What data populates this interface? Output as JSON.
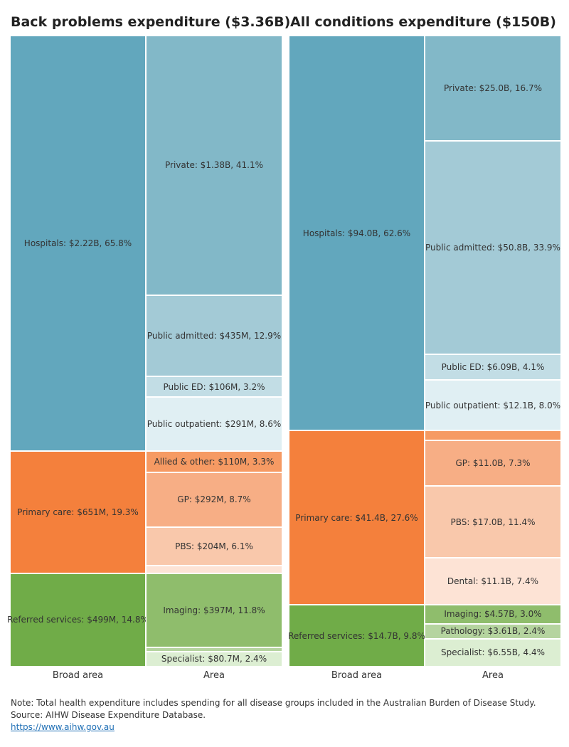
{
  "colors": {
    "hospitals": "#62a7bd",
    "private": "#82b8c8",
    "public_admitted": "#a3cad6",
    "public_ed": "#c2dde5",
    "public_outpatient": "#e0eff3",
    "primary_care": "#f4803c",
    "allied_other": "#f69a63",
    "gp": "#f7ae85",
    "pbs": "#f9c8ab",
    "dental": "#fde3d5",
    "referred": "#70ac48",
    "imaging": "#8fbd6c",
    "pathology": "#b5d49f",
    "specialist": "#dceed2"
  },
  "chart_data": [
    {
      "type": "treemap",
      "title": "Back problems expenditure ($3.36B)",
      "xlabel_broad": "Broad area",
      "xlabel_area": "Area",
      "total_billion": 3.36,
      "broad": [
        {
          "key": "hospitals",
          "label": "Hospitals: $2.22B, 65.8%",
          "value": 65.8,
          "areas": [
            {
              "key": "private",
              "label": "Private: $1.38B, 41.1%",
              "value": 41.1
            },
            {
              "key": "public_admitted",
              "label": "Public admitted: $435M, 12.9%",
              "value": 12.9
            },
            {
              "key": "public_ed",
              "label": "Public ED: $106M, 3.2%",
              "value": 3.2
            },
            {
              "key": "public_outpatient",
              "label": "Public outpatient: $291M, 8.6%",
              "value": 8.6
            }
          ]
        },
        {
          "key": "primary_care",
          "label": "Primary care: $651M, 19.3%",
          "value": 19.3,
          "areas": [
            {
              "key": "allied_other",
              "label": "Allied & other: $110M, 3.3%",
              "value": 3.3
            },
            {
              "key": "gp",
              "label": "GP: $292M, 8.7%",
              "value": 8.7
            },
            {
              "key": "pbs",
              "label": "PBS: $204M, 6.1%",
              "value": 6.1
            },
            {
              "key": "dental",
              "label": "",
              "value": 1.2
            }
          ]
        },
        {
          "key": "referred",
          "label": "Referred services: $499M, 14.8%",
          "value": 14.8,
          "areas": [
            {
              "key": "imaging",
              "label": "Imaging: $397M, 11.8%",
              "value": 11.8
            },
            {
              "key": "pathology",
              "label": "",
              "value": 0.6
            },
            {
              "key": "specialist",
              "label": "Specialist: $80.7M, 2.4%",
              "value": 2.4
            }
          ]
        }
      ]
    },
    {
      "type": "treemap",
      "title": "All conditions expenditure ($150B)",
      "xlabel_broad": "Broad area",
      "xlabel_area": "Area",
      "total_billion": 150,
      "broad": [
        {
          "key": "hospitals",
          "label": "Hospitals: $94.0B, 62.6%",
          "value": 62.6,
          "areas": [
            {
              "key": "private",
              "label": "Private: $25.0B, 16.7%",
              "value": 16.7
            },
            {
              "key": "public_admitted",
              "label": "Public admitted: $50.8B, 33.9%",
              "value": 33.9
            },
            {
              "key": "public_ed",
              "label": "Public ED: $6.09B, 4.1%",
              "value": 4.1
            },
            {
              "key": "public_outpatient",
              "label": "Public outpatient: $12.1B, 8.0%",
              "value": 8.0
            }
          ]
        },
        {
          "key": "primary_care",
          "label": "Primary care: $41.4B, 27.6%",
          "value": 27.6,
          "areas": [
            {
              "key": "allied_other",
              "label": "",
              "value": 1.5
            },
            {
              "key": "gp",
              "label": "GP: $11.0B, 7.3%",
              "value": 7.3
            },
            {
              "key": "pbs",
              "label": "PBS: $17.0B, 11.4%",
              "value": 11.4
            },
            {
              "key": "dental",
              "label": "Dental: $11.1B, 7.4%",
              "value": 7.4
            }
          ]
        },
        {
          "key": "referred",
          "label": "Referred services: $14.7B, 9.8%",
          "value": 9.8,
          "areas": [
            {
              "key": "imaging",
              "label": "Imaging: $4.57B, 3.0%",
              "value": 3.0
            },
            {
              "key": "pathology",
              "label": "Pathology: $3.61B, 2.4%",
              "value": 2.4
            },
            {
              "key": "specialist",
              "label": "Specialist: $6.55B, 4.4%",
              "value": 4.4
            }
          ]
        }
      ]
    }
  ],
  "footer": {
    "note": "Note: Total health expenditure includes spending for all disease groups included in the Australian Burden of Disease Study.",
    "source": "Source: AIHW Disease Expenditure Database.",
    "link": "https://www.aihw.gov.au"
  }
}
